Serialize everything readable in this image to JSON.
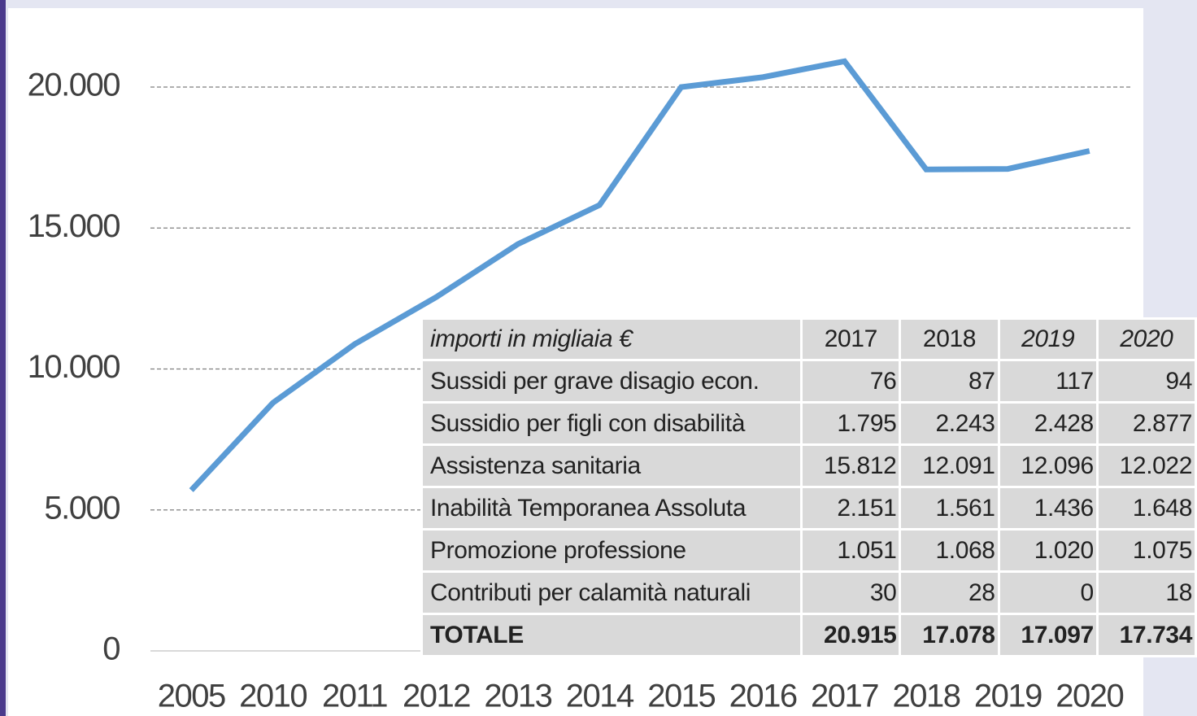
{
  "chart_data": {
    "type": "line",
    "categories": [
      "2005",
      "2010",
      "2011",
      "2012",
      "2013",
      "2014",
      "2015",
      "2016",
      "2017",
      "2018",
      "2019",
      "2020"
    ],
    "values": [
      5700,
      8800,
      10880,
      12550,
      14430,
      15815,
      20000,
      20350,
      20915,
      17078,
      17097,
      17734
    ],
    "color": "#5b9bd5",
    "ylim": [
      0,
      22500
    ],
    "yticks": [
      0,
      {
        "value": 5000,
        "label": "5.000"
      },
      {
        "value": 10000,
        "label": "10.000"
      },
      {
        "value": 15000,
        "label": "15.000"
      },
      {
        "value": 20000,
        "label": "20.000"
      }
    ],
    "grid": true
  },
  "table": {
    "header": [
      "importi in migliaia €",
      "2017",
      "2018",
      "2019",
      "2020"
    ],
    "rows": [
      [
        "Sussidi per grave disagio econ.",
        "76",
        "87",
        "117",
        "94"
      ],
      [
        "Sussidio per figli con disabilità",
        "1.795",
        "2.243",
        "2.428",
        "2.877"
      ],
      [
        "Assistenza sanitaria",
        "15.812",
        "12.091",
        "12.096",
        "12.022"
      ],
      [
        "Inabilità Temporanea Assoluta",
        "2.151",
        "1.561",
        "1.436",
        "1.648"
      ],
      [
        "Promozione professione",
        "1.051",
        "1.068",
        "1.020",
        "1.075"
      ],
      [
        "Contributi per calamità naturali",
        "30",
        "28",
        "0",
        "18"
      ],
      [
        "TOTALE",
        "20.915",
        "17.078",
        "17.097",
        "17.734"
      ]
    ]
  }
}
